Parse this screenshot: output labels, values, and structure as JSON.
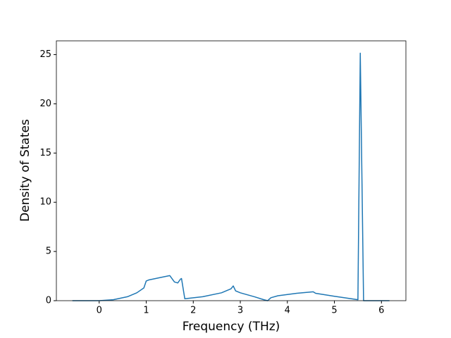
{
  "chart_data": {
    "type": "line",
    "xlabel": "Frequency (THz)",
    "ylabel": "Density of States",
    "x": [
      -0.57,
      0,
      0.3,
      0.6,
      0.8,
      0.95,
      1.0,
      1.05,
      1.3,
      1.5,
      1.6,
      1.67,
      1.73,
      1.75,
      1.82,
      2.2,
      2.6,
      2.8,
      2.85,
      2.9,
      3.0,
      3.3,
      3.5,
      3.58,
      3.65,
      3.8,
      4.2,
      4.55,
      4.6,
      5.0,
      5.5,
      5.55,
      5.62,
      6.17
    ],
    "values": [
      0,
      0,
      0.1,
      0.4,
      0.8,
      1.3,
      2.0,
      2.1,
      2.35,
      2.55,
      1.9,
      1.8,
      2.2,
      2.25,
      0.2,
      0.4,
      0.8,
      1.2,
      1.5,
      1.0,
      0.8,
      0.4,
      0.1,
      0.0,
      0.3,
      0.5,
      0.75,
      0.9,
      0.75,
      0.45,
      0.1,
      25.15,
      0,
      0
    ],
    "color": "#1f77b4",
    "xlim": [
      -0.91,
      6.52
    ],
    "ylim": [
      0,
      26.4
    ],
    "xticks": [
      0,
      1,
      2,
      3,
      4,
      5,
      6
    ],
    "yticks": [
      0,
      5,
      10,
      15,
      20,
      25
    ]
  }
}
